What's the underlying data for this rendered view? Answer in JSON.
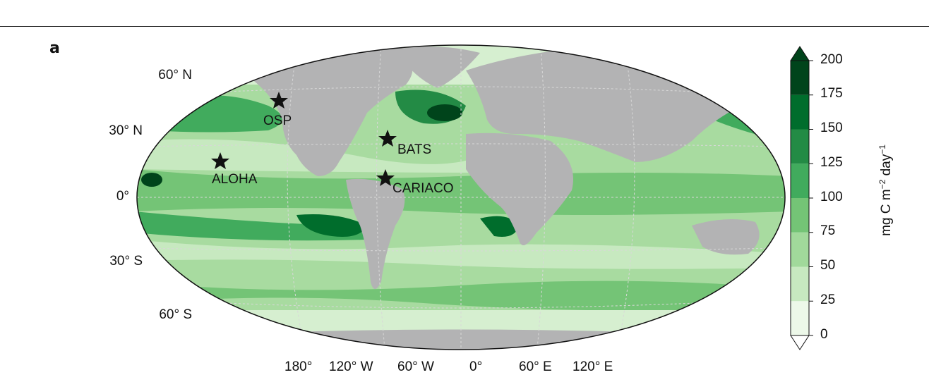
{
  "panel_label": "a",
  "lat_labels": [
    "60° N",
    "30° N",
    "0°",
    "30° S",
    "60° S"
  ],
  "lon_labels": [
    "180°",
    "120° W",
    "60° W",
    "0°",
    "60° E",
    "120° E"
  ],
  "sites": [
    "OSP",
    "BATS",
    "ALOHA",
    "CARIACO"
  ],
  "colorbar": {
    "ticks": [
      "200",
      "175",
      "150",
      "125",
      "100",
      "75",
      "50",
      "25",
      "0"
    ],
    "unit_main": "mg C m",
    "unit_exp1": "−2",
    "unit_day": " day",
    "unit_exp2": "−1",
    "colors": [
      "#edf8e9",
      "#c7e9c0",
      "#a1d99b",
      "#74c476",
      "#41ab5d",
      "#238b45",
      "#006d2c",
      "#00441b"
    ]
  },
  "colors": {
    "land": "#b3b3b4",
    "ocean_base": "#a8dba0"
  }
}
